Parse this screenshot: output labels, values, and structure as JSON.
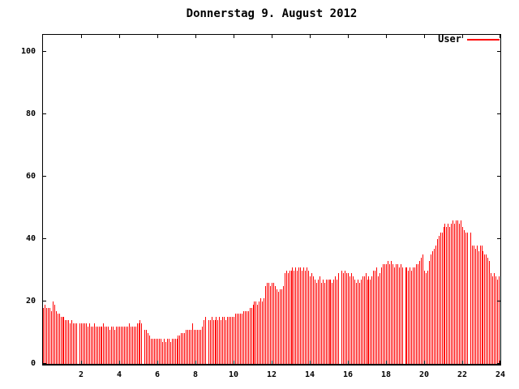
{
  "title": "Donnerstag 9. August 2012",
  "colors": {
    "series": "#ff0000",
    "axis": "#000000",
    "background": "#ffffff"
  },
  "legend": {
    "label": "User",
    "color": "#ff0000",
    "position": "top-right-inside"
  },
  "chart_data": {
    "type": "bar",
    "style": "impulses",
    "title": "Donnerstag 9. August 2012",
    "series_name": "User",
    "xlabel": "",
    "ylabel": "",
    "x_unit": "hour-of-day",
    "x_start_hour": 0,
    "x_end_hour": 24,
    "interval_minutes": 5,
    "xlim": [
      0,
      24
    ],
    "ylim": [
      0,
      105.5
    ],
    "xticks": [
      2,
      4,
      6,
      8,
      10,
      12,
      14,
      16,
      18,
      20,
      22,
      24
    ],
    "yticks": [
      0,
      20,
      40,
      60,
      80,
      100
    ],
    "grid": false,
    "values": [
      18,
      19,
      18,
      18,
      18,
      17,
      20,
      19,
      17,
      16,
      16,
      15,
      15,
      15,
      14,
      14,
      14,
      13,
      14,
      13,
      13,
      13,
      0,
      13,
      13,
      13,
      13,
      13,
      12,
      13,
      12,
      12,
      13,
      12,
      12,
      12,
      12,
      12,
      13,
      12,
      12,
      12,
      11,
      12,
      12,
      11,
      12,
      12,
      12,
      12,
      12,
      12,
      12,
      12,
      13,
      12,
      12,
      12,
      12,
      13,
      13,
      14,
      13,
      0,
      11,
      11,
      10,
      9,
      8,
      8,
      8,
      8,
      8,
      8,
      8,
      7,
      8,
      7,
      8,
      8,
      7,
      8,
      8,
      8,
      8,
      9,
      9,
      10,
      10,
      10,
      11,
      11,
      11,
      11,
      13,
      11,
      11,
      11,
      11,
      11,
      12,
      14,
      15,
      0,
      14,
      14,
      15,
      14,
      14,
      15,
      14,
      15,
      14,
      15,
      15,
      14,
      15,
      15,
      15,
      15,
      15,
      16,
      16,
      16,
      16,
      16,
      17,
      17,
      17,
      17,
      18,
      18,
      19,
      20,
      20,
      19,
      20,
      21,
      20,
      21,
      25,
      26,
      26,
      25,
      26,
      26,
      25,
      24,
      23,
      24,
      24,
      25,
      29,
      30,
      29,
      30,
      30,
      31,
      30,
      31,
      30,
      31,
      31,
      30,
      31,
      30,
      31,
      30,
      28,
      29,
      28,
      27,
      26,
      27,
      28,
      26,
      27,
      26,
      27,
      27,
      27,
      27,
      26,
      27,
      28,
      27,
      29,
      0,
      30,
      29,
      30,
      29,
      29,
      28,
      29,
      28,
      27,
      26,
      27,
      26,
      27,
      28,
      28,
      29,
      27,
      28,
      27,
      28,
      30,
      30,
      31,
      28,
      29,
      31,
      32,
      32,
      32,
      33,
      32,
      33,
      32,
      31,
      32,
      32,
      31,
      32,
      31,
      0,
      31,
      31,
      30,
      31,
      30,
      31,
      31,
      32,
      32,
      33,
      34,
      35,
      30,
      29,
      30,
      33,
      35,
      36,
      37,
      38,
      40,
      41,
      42,
      42,
      44,
      45,
      44,
      45,
      44,
      45,
      46,
      45,
      46,
      46,
      45,
      46,
      44,
      43,
      42,
      42,
      0,
      42,
      38,
      38,
      37,
      38,
      36,
      38,
      38,
      36,
      35,
      35,
      34,
      33,
      29,
      28,
      29,
      28,
      27,
      28
    ]
  }
}
